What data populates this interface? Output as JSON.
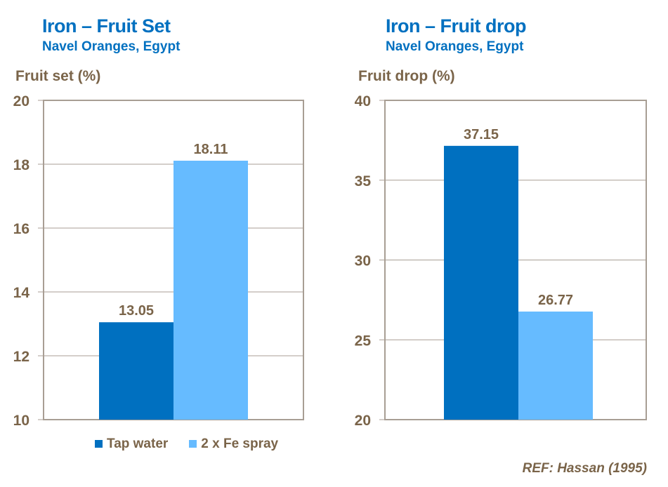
{
  "chart_data": [
    {
      "type": "bar",
      "title": "Iron – Fruit Set",
      "subtitle": "Navel Oranges, Egypt",
      "ylabel": "Fruit set (%)",
      "ylim": [
        10,
        20
      ],
      "yticks": [
        10,
        12,
        14,
        16,
        18,
        20
      ],
      "grid": true,
      "series": [
        {
          "name": "Tap water",
          "values": [
            13.05
          ]
        },
        {
          "name": "2 x Fe spray",
          "values": [
            18.11
          ]
        }
      ],
      "data_labels": [
        "13.05",
        "18.11"
      ]
    },
    {
      "type": "bar",
      "title": "Iron – Fruit drop",
      "subtitle": "Navel Oranges, Egypt",
      "ylabel": "Fruit drop (%)",
      "ylim": [
        20,
        40
      ],
      "yticks": [
        20,
        25,
        30,
        35,
        40
      ],
      "grid": true,
      "series": [
        {
          "name": "Tap water",
          "values": [
            37.15
          ]
        },
        {
          "name": "2 x Fe spray",
          "values": [
            26.77
          ]
        }
      ],
      "data_labels": [
        "37.15",
        "26.77"
      ]
    }
  ],
  "legend": {
    "position": "bottom",
    "items": [
      {
        "label": "Tap water",
        "color": "#0070C0"
      },
      {
        "label": "2 x Fe spray",
        "color": "#66BBFF"
      }
    ]
  },
  "reference": "REF: Hassan (1995)",
  "colors": {
    "title": "#0070C0",
    "text": "#7A6449",
    "axis": "#A89E94"
  }
}
